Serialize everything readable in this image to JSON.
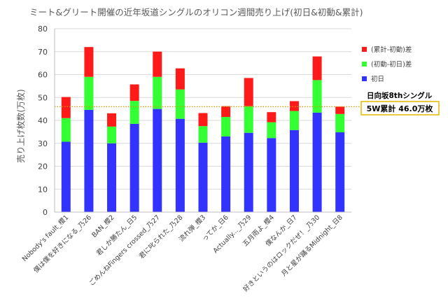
{
  "chart_data": {
    "type": "bar",
    "stacked": true,
    "title": "ミート&グリート開催の近年坂道シングルのオリコン週間売り上げ(初日&初動&累計)",
    "ylabel": "売り上げ枚数(万枚)",
    "xlabel": "",
    "ylim": [
      0,
      80
    ],
    "yticks": [
      0,
      10,
      20,
      30,
      40,
      50,
      60,
      70,
      80
    ],
    "grid": true,
    "legend_position": "right",
    "categories": [
      "Nobody's fault_櫻1",
      "僕は僕を好きになる_乃26",
      "BAN_櫻2",
      "君しか勝たん_日5",
      "ごめんねFingers crossed_乃27",
      "君に叱られた_乃28",
      "流れ弾_櫻3",
      "ってか_日6",
      "Actually..._乃29",
      "五月雨よ_櫻4",
      "僕なんか_日7",
      "好きというのはロックだぜ！_乃30",
      "月と星が踊るMidnight_日8"
    ],
    "series": [
      {
        "name": "初日",
        "color": "#3333ff",
        "values": [
          30.7,
          44.6,
          30.0,
          38.5,
          45.0,
          40.7,
          30.3,
          33.0,
          34.6,
          32.3,
          35.8,
          43.4,
          34.8
        ]
      },
      {
        "name": "(初動-初日)差",
        "color": "#33ff33",
        "values": [
          10.3,
          14.4,
          7.3,
          10.0,
          14.0,
          12.8,
          7.2,
          8.5,
          11.6,
          6.9,
          8.3,
          14.2,
          8.0
        ]
      },
      {
        "name": "(累計-初動)差",
        "color": "#ff1a1a",
        "values": [
          9.2,
          13.0,
          5.8,
          7.2,
          11.0,
          9.2,
          5.7,
          4.7,
          12.3,
          4.4,
          4.3,
          10.3,
          3.2
        ]
      }
    ],
    "reference_line": {
      "value": 46.0,
      "color": "#cc9900",
      "style": "dotted"
    },
    "annotation": {
      "label": "日向坂8thシングル",
      "box_text": "5W累計 46.0万枚",
      "box_border_color": "#e6b800"
    }
  }
}
